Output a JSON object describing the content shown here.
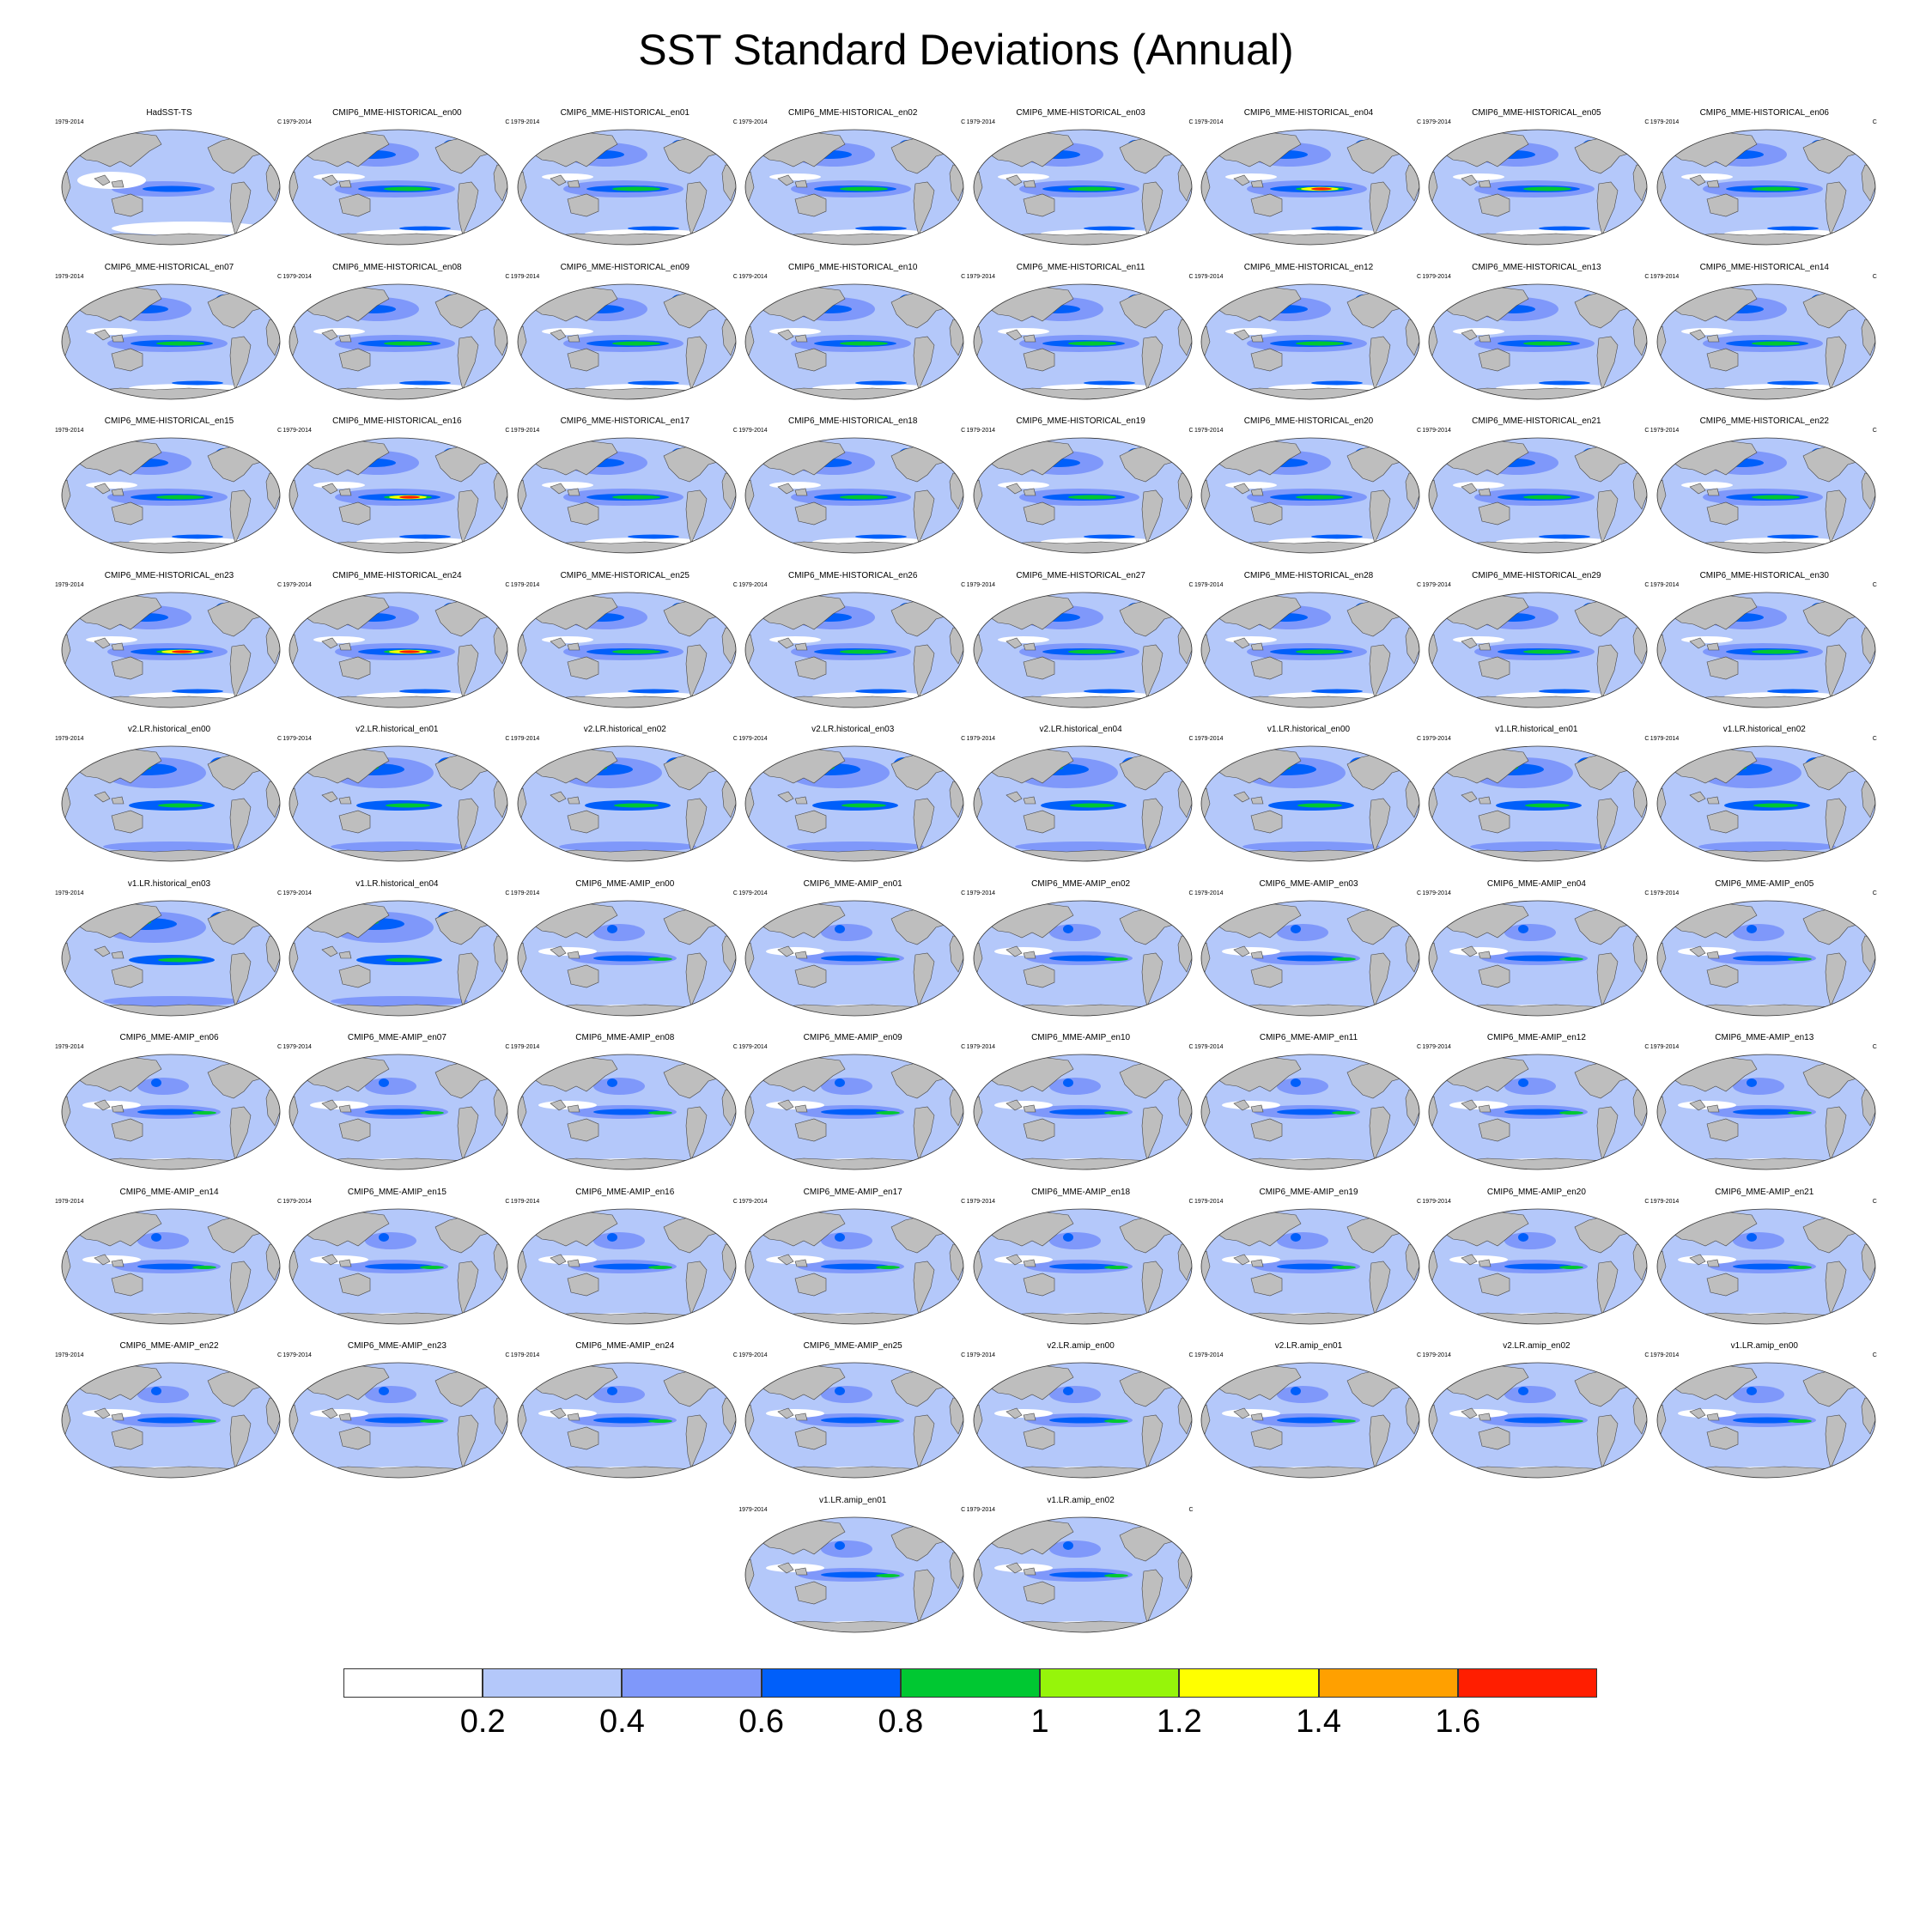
{
  "title": "SST Standard Deviations (Annual)",
  "period": "1979-2014",
  "unit": "C",
  "panels": [
    {
      "title": "HadSST-TS",
      "style": "obs"
    },
    {
      "title": "CMIP6_MME-HISTORICAL_en00",
      "style": "hist"
    },
    {
      "title": "CMIP6_MME-HISTORICAL_en01",
      "style": "hist"
    },
    {
      "title": "CMIP6_MME-HISTORICAL_en02",
      "style": "hist"
    },
    {
      "title": "CMIP6_MME-HISTORICAL_en03",
      "style": "hist"
    },
    {
      "title": "CMIP6_MME-HISTORICAL_en04",
      "style": "hist_strong"
    },
    {
      "title": "CMIP6_MME-HISTORICAL_en05",
      "style": "hist"
    },
    {
      "title": "CMIP6_MME-HISTORICAL_en06",
      "style": "hist"
    },
    {
      "title": "CMIP6_MME-HISTORICAL_en07",
      "style": "hist"
    },
    {
      "title": "CMIP6_MME-HISTORICAL_en08",
      "style": "hist"
    },
    {
      "title": "CMIP6_MME-HISTORICAL_en09",
      "style": "hist"
    },
    {
      "title": "CMIP6_MME-HISTORICAL_en10",
      "style": "hist"
    },
    {
      "title": "CMIP6_MME-HISTORICAL_en11",
      "style": "hist"
    },
    {
      "title": "CMIP6_MME-HISTORICAL_en12",
      "style": "hist"
    },
    {
      "title": "CMIP6_MME-HISTORICAL_en13",
      "style": "hist"
    },
    {
      "title": "CMIP6_MME-HISTORICAL_en14",
      "style": "hist"
    },
    {
      "title": "CMIP6_MME-HISTORICAL_en15",
      "style": "hist"
    },
    {
      "title": "CMIP6_MME-HISTORICAL_en16",
      "style": "hist_strong"
    },
    {
      "title": "CMIP6_MME-HISTORICAL_en17",
      "style": "hist"
    },
    {
      "title": "CMIP6_MME-HISTORICAL_en18",
      "style": "hist"
    },
    {
      "title": "CMIP6_MME-HISTORICAL_en19",
      "style": "hist"
    },
    {
      "title": "CMIP6_MME-HISTORICAL_en20",
      "style": "hist"
    },
    {
      "title": "CMIP6_MME-HISTORICAL_en21",
      "style": "hist"
    },
    {
      "title": "CMIP6_MME-HISTORICAL_en22",
      "style": "hist"
    },
    {
      "title": "CMIP6_MME-HISTORICAL_en23",
      "style": "hist_strong"
    },
    {
      "title": "CMIP6_MME-HISTORICAL_en24",
      "style": "hist_strong"
    },
    {
      "title": "CMIP6_MME-HISTORICAL_en25",
      "style": "hist"
    },
    {
      "title": "CMIP6_MME-HISTORICAL_en26",
      "style": "hist"
    },
    {
      "title": "CMIP6_MME-HISTORICAL_en27",
      "style": "hist"
    },
    {
      "title": "CMIP6_MME-HISTORICAL_en28",
      "style": "hist"
    },
    {
      "title": "CMIP6_MME-HISTORICAL_en29",
      "style": "hist"
    },
    {
      "title": "CMIP6_MME-HISTORICAL_en30",
      "style": "hist"
    },
    {
      "title": "v2.LR.historical_en00",
      "style": "e3sm_hist"
    },
    {
      "title": "v2.LR.historical_en01",
      "style": "e3sm_hist"
    },
    {
      "title": "v2.LR.historical_en02",
      "style": "e3sm_hist"
    },
    {
      "title": "v2.LR.historical_en03",
      "style": "e3sm_hist"
    },
    {
      "title": "v2.LR.historical_en04",
      "style": "e3sm_hist"
    },
    {
      "title": "v1.LR.historical_en00",
      "style": "e3sm_hist"
    },
    {
      "title": "v1.LR.historical_en01",
      "style": "e3sm_hist"
    },
    {
      "title": "v1.LR.historical_en02",
      "style": "e3sm_hist"
    },
    {
      "title": "v1.LR.historical_en03",
      "style": "e3sm_hist"
    },
    {
      "title": "v1.LR.historical_en04",
      "style": "e3sm_hist"
    },
    {
      "title": "CMIP6_MME-AMIP_en00",
      "style": "amip"
    },
    {
      "title": "CMIP6_MME-AMIP_en01",
      "style": "amip"
    },
    {
      "title": "CMIP6_MME-AMIP_en02",
      "style": "amip"
    },
    {
      "title": "CMIP6_MME-AMIP_en03",
      "style": "amip"
    },
    {
      "title": "CMIP6_MME-AMIP_en04",
      "style": "amip"
    },
    {
      "title": "CMIP6_MME-AMIP_en05",
      "style": "amip"
    },
    {
      "title": "CMIP6_MME-AMIP_en06",
      "style": "amip"
    },
    {
      "title": "CMIP6_MME-AMIP_en07",
      "style": "amip"
    },
    {
      "title": "CMIP6_MME-AMIP_en08",
      "style": "amip"
    },
    {
      "title": "CMIP6_MME-AMIP_en09",
      "style": "amip"
    },
    {
      "title": "CMIP6_MME-AMIP_en10",
      "style": "amip"
    },
    {
      "title": "CMIP6_MME-AMIP_en11",
      "style": "amip"
    },
    {
      "title": "CMIP6_MME-AMIP_en12",
      "style": "amip"
    },
    {
      "title": "CMIP6_MME-AMIP_en13",
      "style": "amip"
    },
    {
      "title": "CMIP6_MME-AMIP_en14",
      "style": "amip"
    },
    {
      "title": "CMIP6_MME-AMIP_en15",
      "style": "amip"
    },
    {
      "title": "CMIP6_MME-AMIP_en16",
      "style": "amip"
    },
    {
      "title": "CMIP6_MME-AMIP_en17",
      "style": "amip"
    },
    {
      "title": "CMIP6_MME-AMIP_en18",
      "style": "amip"
    },
    {
      "title": "CMIP6_MME-AMIP_en19",
      "style": "amip"
    },
    {
      "title": "CMIP6_MME-AMIP_en20",
      "style": "amip"
    },
    {
      "title": "CMIP6_MME-AMIP_en21",
      "style": "amip"
    },
    {
      "title": "CMIP6_MME-AMIP_en22",
      "style": "amip"
    },
    {
      "title": "CMIP6_MME-AMIP_en23",
      "style": "amip"
    },
    {
      "title": "CMIP6_MME-AMIP_en24",
      "style": "amip"
    },
    {
      "title": "CMIP6_MME-AMIP_en25",
      "style": "amip"
    },
    {
      "title": "v2.LR.amip_en00",
      "style": "amip"
    },
    {
      "title": "v2.LR.amip_en01",
      "style": "amip"
    },
    {
      "title": "v2.LR.amip_en02",
      "style": "amip"
    },
    {
      "title": "v1.LR.amip_en00",
      "style": "amip"
    },
    {
      "title": "v1.LR.amip_en01",
      "style": "amip"
    },
    {
      "title": "v1.LR.amip_en02",
      "style": "amip"
    }
  ],
  "colorbar": {
    "colors": [
      "#ffffff",
      "#b4c8fa",
      "#7f98fa",
      "#005ffa",
      "#00c832",
      "#96f50a",
      "#ffff00",
      "#ffa000",
      "#ff1e00"
    ],
    "labels": [
      "0.2",
      "0.4",
      "0.6",
      "0.8",
      "1",
      "1.2",
      "1.4",
      "1.6"
    ]
  },
  "land_color": "#bebebe"
}
